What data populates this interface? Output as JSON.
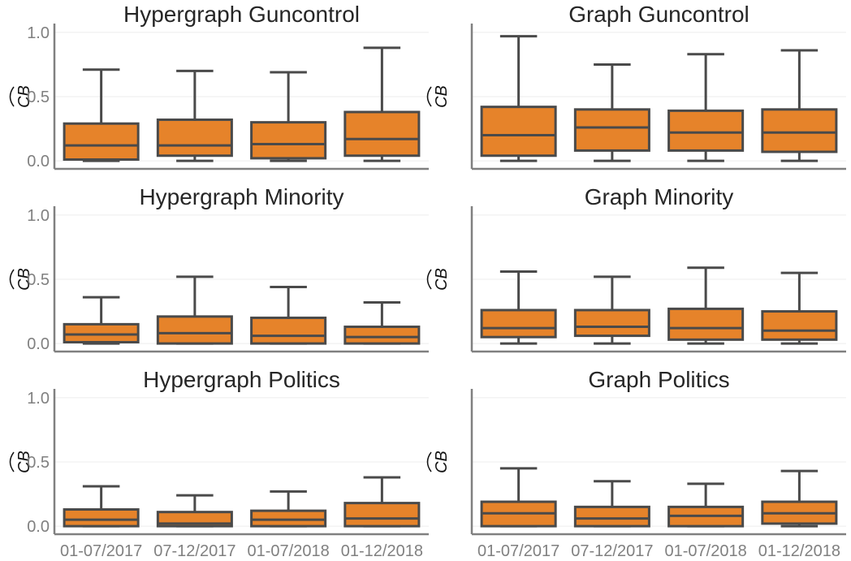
{
  "chart_data": [
    {
      "type": "box",
      "title": "Hypergraph Guncontrol",
      "ylabel": "CB",
      "ylim": [
        -0.05,
        1.05
      ],
      "yticks": [
        "0.0",
        "0.5",
        "1.0"
      ],
      "show_yticks": true,
      "show_xticks": false,
      "categories": [
        "01-07/2017",
        "07-12/2017",
        "01-07/2018",
        "01-12/2018"
      ],
      "boxes": [
        {
          "min": 0.0,
          "q1": 0.01,
          "median": 0.12,
          "q3": 0.29,
          "max": 0.71
        },
        {
          "min": 0.0,
          "q1": 0.04,
          "median": 0.12,
          "q3": 0.32,
          "max": 0.7
        },
        {
          "min": 0.0,
          "q1": 0.02,
          "median": 0.13,
          "q3": 0.3,
          "max": 0.69
        },
        {
          "min": 0.0,
          "q1": 0.04,
          "median": 0.17,
          "q3": 0.38,
          "max": 0.88
        }
      ]
    },
    {
      "type": "box",
      "title": "Graph Guncontrol",
      "ylabel": "CB",
      "ylim": [
        -0.05,
        1.05
      ],
      "yticks": [
        "0.0",
        "0.5",
        "1.0"
      ],
      "show_yticks": false,
      "show_xticks": false,
      "categories": [
        "01-07/2017",
        "07-12/2017",
        "01-07/2018",
        "01-12/2018"
      ],
      "boxes": [
        {
          "min": 0.0,
          "q1": 0.04,
          "median": 0.2,
          "q3": 0.42,
          "max": 0.97
        },
        {
          "min": 0.0,
          "q1": 0.08,
          "median": 0.26,
          "q3": 0.4,
          "max": 0.75
        },
        {
          "min": 0.0,
          "q1": 0.08,
          "median": 0.22,
          "q3": 0.39,
          "max": 0.83
        },
        {
          "min": 0.0,
          "q1": 0.07,
          "median": 0.22,
          "q3": 0.4,
          "max": 0.86
        }
      ]
    },
    {
      "type": "box",
      "title": "Hypergraph Minority",
      "ylabel": "CB",
      "ylim": [
        -0.05,
        1.05
      ],
      "yticks": [
        "0.0",
        "0.5",
        "1.0"
      ],
      "show_yticks": true,
      "show_xticks": false,
      "categories": [
        "01-07/2017",
        "07-12/2017",
        "01-07/2018",
        "01-12/2018"
      ],
      "boxes": [
        {
          "min": 0.0,
          "q1": 0.01,
          "median": 0.07,
          "q3": 0.15,
          "max": 0.36
        },
        {
          "min": 0.0,
          "q1": 0.0,
          "median": 0.08,
          "q3": 0.21,
          "max": 0.52
        },
        {
          "min": 0.0,
          "q1": 0.0,
          "median": 0.06,
          "q3": 0.2,
          "max": 0.44
        },
        {
          "min": 0.0,
          "q1": 0.0,
          "median": 0.05,
          "q3": 0.13,
          "max": 0.32
        }
      ]
    },
    {
      "type": "box",
      "title": "Graph Minority",
      "ylabel": "CB",
      "ylim": [
        -0.05,
        1.05
      ],
      "yticks": [
        "0.0",
        "0.5",
        "1.0"
      ],
      "show_yticks": false,
      "show_xticks": false,
      "categories": [
        "01-07/2017",
        "07-12/2017",
        "01-07/2018",
        "01-12/2018"
      ],
      "boxes": [
        {
          "min": 0.0,
          "q1": 0.05,
          "median": 0.12,
          "q3": 0.26,
          "max": 0.56
        },
        {
          "min": 0.0,
          "q1": 0.06,
          "median": 0.13,
          "q3": 0.26,
          "max": 0.52
        },
        {
          "min": 0.0,
          "q1": 0.03,
          "median": 0.12,
          "q3": 0.27,
          "max": 0.59
        },
        {
          "min": 0.0,
          "q1": 0.03,
          "median": 0.1,
          "q3": 0.25,
          "max": 0.55
        }
      ]
    },
    {
      "type": "box",
      "title": "Hypergraph Politics",
      "ylabel": "CB",
      "ylim": [
        -0.05,
        1.05
      ],
      "yticks": [
        "0.0",
        "0.5",
        "1.0"
      ],
      "show_yticks": true,
      "show_xticks": true,
      "categories": [
        "01-07/2017",
        "07-12/2017",
        "01-07/2018",
        "01-12/2018"
      ],
      "boxes": [
        {
          "min": 0.0,
          "q1": 0.0,
          "median": 0.05,
          "q3": 0.13,
          "max": 0.31
        },
        {
          "min": 0.0,
          "q1": 0.0,
          "median": 0.02,
          "q3": 0.11,
          "max": 0.24
        },
        {
          "min": 0.0,
          "q1": 0.0,
          "median": 0.05,
          "q3": 0.12,
          "max": 0.27
        },
        {
          "min": 0.0,
          "q1": 0.0,
          "median": 0.06,
          "q3": 0.18,
          "max": 0.38
        }
      ]
    },
    {
      "type": "box",
      "title": "Graph Politics",
      "ylabel": "CB",
      "ylim": [
        -0.05,
        1.05
      ],
      "yticks": [
        "0.0",
        "0.5",
        "1.0"
      ],
      "show_yticks": false,
      "show_xticks": true,
      "categories": [
        "01-07/2017",
        "07-12/2017",
        "01-07/2018",
        "01-12/2018"
      ],
      "boxes": [
        {
          "min": 0.0,
          "q1": 0.0,
          "median": 0.1,
          "q3": 0.19,
          "max": 0.45
        },
        {
          "min": 0.0,
          "q1": 0.0,
          "median": 0.06,
          "q3": 0.15,
          "max": 0.35
        },
        {
          "min": 0.0,
          "q1": 0.0,
          "median": 0.08,
          "q3": 0.15,
          "max": 0.33
        },
        {
          "min": 0.0,
          "q1": 0.02,
          "median": 0.1,
          "q3": 0.19,
          "max": 0.43
        }
      ]
    }
  ],
  "colors": {
    "box_fill": "#e6832a",
    "box_line": "#4a4a4a",
    "axis": "#808080",
    "grid": "#eeeeee"
  }
}
